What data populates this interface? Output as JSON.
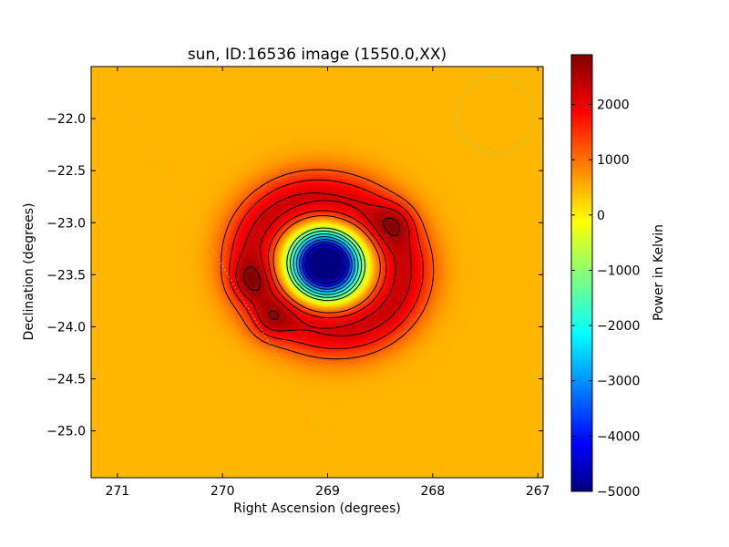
{
  "chart_data": {
    "type": "heatmap",
    "title": "sun, ID:16536 image (1550.0,XX)",
    "xlabel": "Right Ascension (degrees)",
    "ylabel": "Declination (degrees)",
    "xlim": [
      271.25,
      266.95
    ],
    "ylim": [
      -25.45,
      -21.5
    ],
    "x_ticks": [
      271,
      270,
      269,
      268,
      267
    ],
    "x_tick_labels": [
      "271",
      "270",
      "269",
      "268",
      "267"
    ],
    "y_ticks": [
      -22.0,
      -22.5,
      -23.0,
      -23.5,
      -24.0,
      -24.5,
      -25.0
    ],
    "y_tick_labels": [
      "−22.0",
      "−22.5",
      "−23.0",
      "−23.5",
      "−24.0",
      "−24.5",
      "−25.0"
    ],
    "colorbar": {
      "label": "Power in Kelvin",
      "range": [
        -5000,
        2900
      ],
      "ticks": [
        2000,
        1000,
        0,
        -1000,
        -2000,
        -3000,
        -4000,
        -5000
      ],
      "tick_labels": [
        "2000",
        "1000",
        "0",
        "−1000",
        "−2000",
        "−3000",
        "−4000",
        "−5000"
      ],
      "colormap": "jet"
    },
    "background_level": 500,
    "features": {
      "ring_center": [
        269.0,
        -23.4
      ],
      "ring_peak": 2400,
      "central_minimum": {
        "center": [
          269.02,
          -23.4
        ],
        "value": -4500
      },
      "positive_peaks": [
        {
          "ra": 269.75,
          "dec": -23.55,
          "value": 2900
        },
        {
          "ra": 269.55,
          "dec": -23.95,
          "value": 2850
        },
        {
          "ra": 268.35,
          "dec": -23.0,
          "value": 2750
        }
      ]
    },
    "beam": {
      "ra": 267.4,
      "dec": -21.97,
      "color": "#c8c832"
    },
    "galactic_plane": {
      "from": [
        271.1,
        -21.6
      ],
      "to": [
        268.8,
        -25.4
      ],
      "color": "#c8c832"
    }
  }
}
